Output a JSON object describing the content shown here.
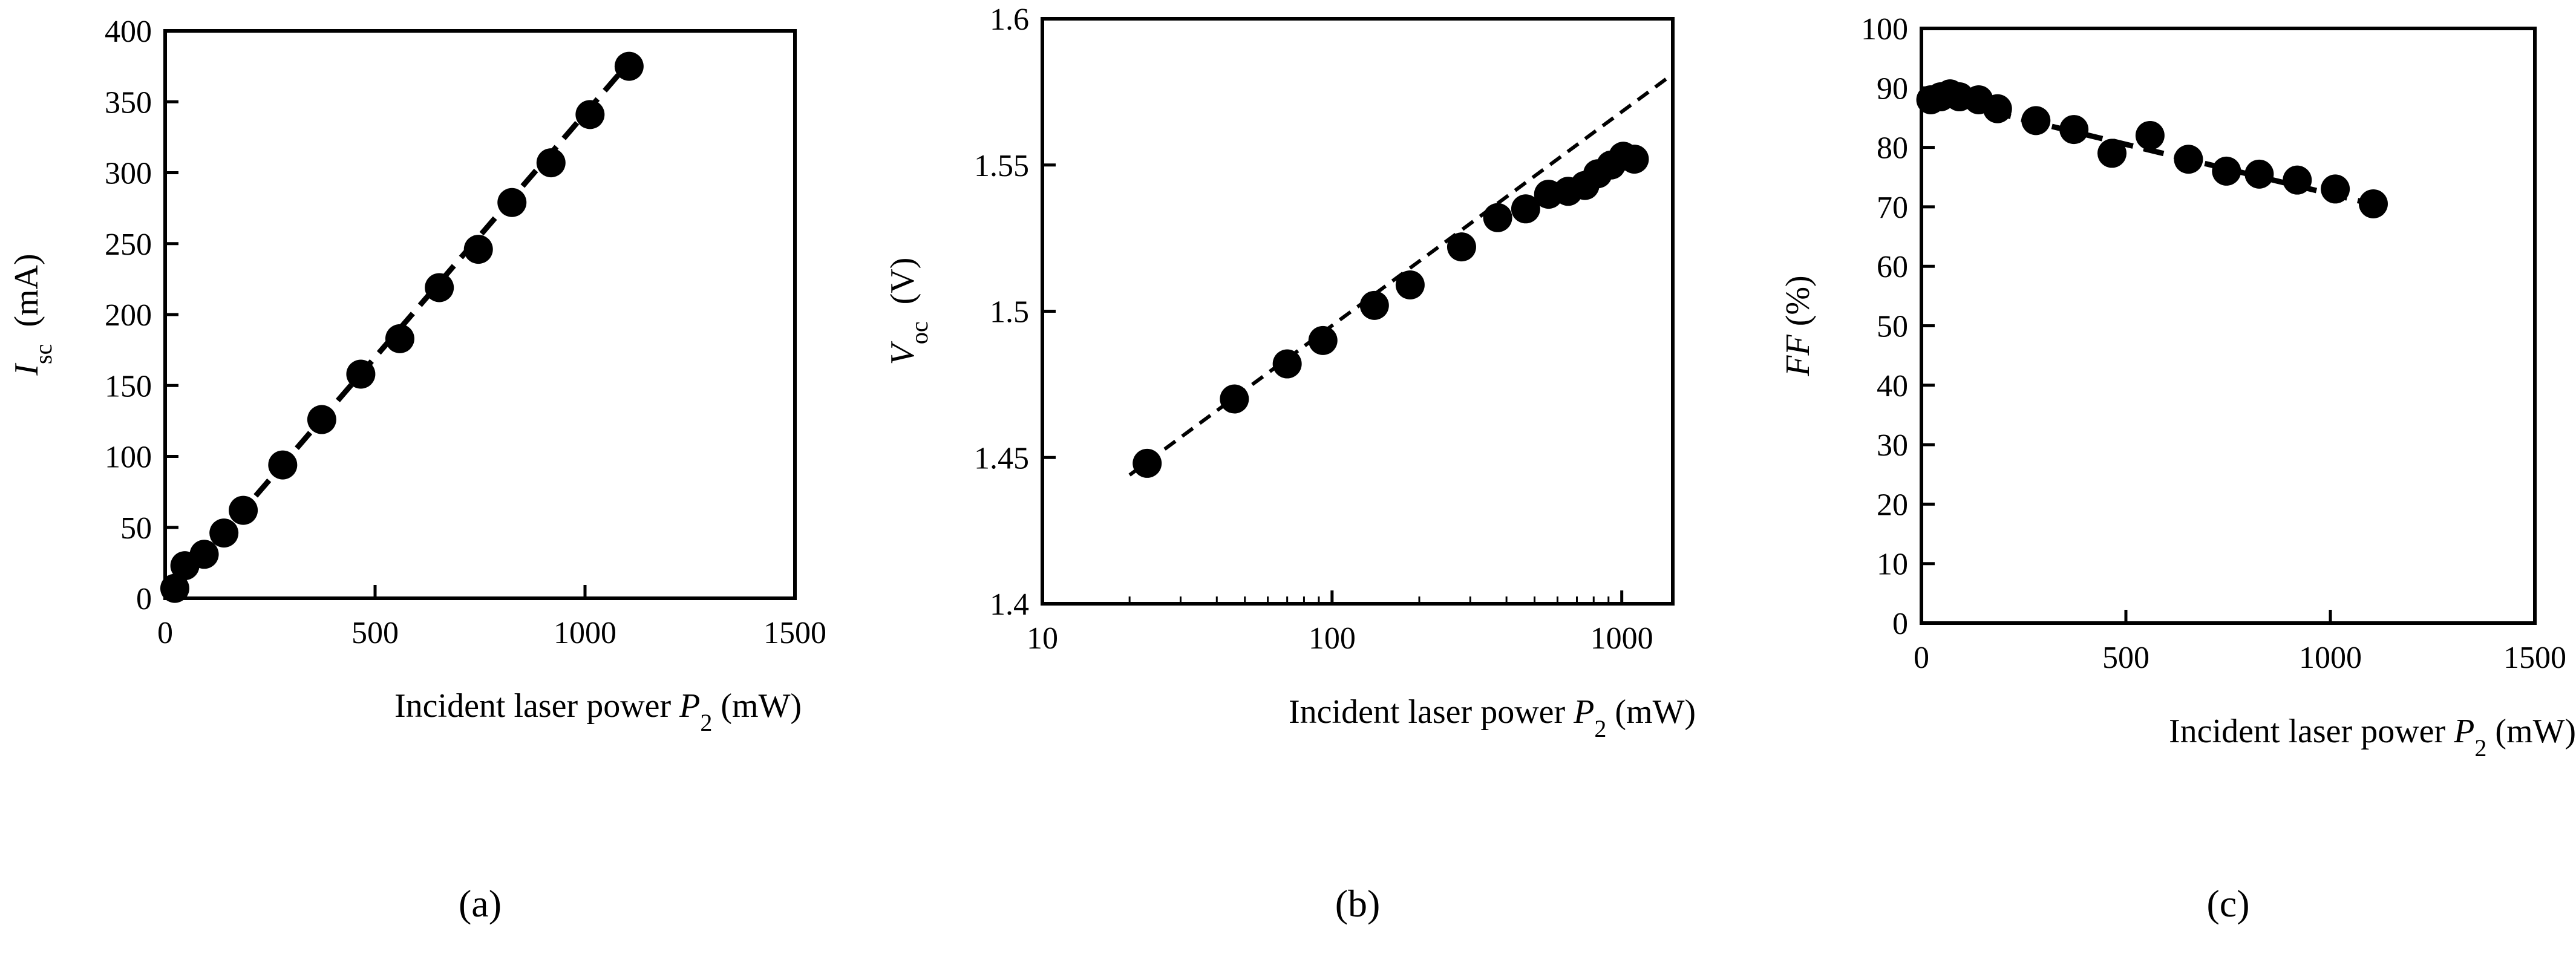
{
  "chart_data": [
    {
      "type": "scatter",
      "panel_label": "(a)",
      "xlabel": {
        "text": "Incident laser power ",
        "var": "P",
        "sub": "2",
        "unit": " (mW)"
      },
      "ylabel": {
        "var": "I",
        "sub": "sc",
        "unit": "(mA)"
      },
      "x_scale": "linear",
      "xlim": [
        0,
        1500
      ],
      "ylim": [
        0,
        400
      ],
      "xticks": [
        0,
        500,
        1000,
        1500
      ],
      "yticks": [
        0,
        50,
        100,
        150,
        200,
        250,
        300,
        350,
        400
      ],
      "grid": false,
      "marker_color": "#000000",
      "fit_line": {
        "style": "dashed",
        "points": [
          [
            20,
            5
          ],
          [
            1100,
            376
          ]
        ]
      },
      "series": [
        {
          "x": [
            23,
            47,
            93,
            140,
            186,
            280,
            373,
            466,
            559,
            653,
            746,
            826,
            919,
            1012,
            1105
          ],
          "y": [
            7,
            23,
            31,
            46,
            62,
            94,
            126,
            158,
            183,
            219,
            246,
            279,
            307,
            341,
            375
          ]
        }
      ]
    },
    {
      "type": "scatter",
      "panel_label": "(b)",
      "xlabel": {
        "text": "Incident laser power ",
        "var": "P",
        "sub": "2",
        "unit": " (mW)"
      },
      "ylabel": {
        "var": "V",
        "sub": "oc",
        "unit": "(V)"
      },
      "x_scale": "log",
      "xlim": [
        10,
        1500
      ],
      "ylim": [
        1.4,
        1.6
      ],
      "xticks": [
        10,
        100,
        1000
      ],
      "yticks": [
        1.4,
        1.45,
        1.5,
        1.55,
        1.6
      ],
      "ytick_labels": [
        "1.4",
        "1.45",
        "1.5",
        "1.55",
        "1.6"
      ],
      "grid": false,
      "marker_color": "#000000",
      "fit_line": {
        "style": "dashed",
        "points": [
          [
            20,
            1.444
          ],
          [
            1450,
            1.58
          ]
        ]
      },
      "series": [
        {
          "x": [
            23,
            46,
            70,
            93,
            140,
            186,
            280,
            373,
            466,
            559,
            653,
            746,
            826,
            919,
            1012,
            1105
          ],
          "y": [
            1.448,
            1.47,
            1.482,
            1.49,
            1.502,
            1.509,
            1.522,
            1.532,
            1.535,
            1.54,
            1.541,
            1.543,
            1.547,
            1.55,
            1.553,
            1.552
          ]
        }
      ]
    },
    {
      "type": "scatter",
      "panel_label": "(c)",
      "xlabel": {
        "text": "Incident laser power ",
        "var": "P",
        "sub": "2",
        "unit": " (mW)"
      },
      "ylabel": {
        "var": "FF",
        "sub": "",
        "unit": " (%)"
      },
      "x_scale": "linear",
      "xlim": [
        0,
        1500
      ],
      "ylim": [
        0,
        100
      ],
      "xticks": [
        0,
        500,
        1000,
        1500
      ],
      "yticks": [
        0,
        10,
        20,
        30,
        40,
        50,
        60,
        70,
        80,
        90,
        100
      ],
      "grid": false,
      "marker_color": "#000000",
      "fit_line": {
        "style": "dashed",
        "points": [
          [
            20,
            88.5
          ],
          [
            1100,
            70.5
          ]
        ]
      },
      "series": [
        {
          "x": [
            23,
            47,
            70,
            93,
            140,
            186,
            280,
            373,
            466,
            559,
            653,
            746,
            826,
            919,
            1012,
            1105
          ],
          "y": [
            88,
            88.5,
            89,
            88.5,
            88,
            86.5,
            84.5,
            83,
            79,
            82,
            78,
            76,
            75.5,
            74.5,
            73,
            70.5
          ]
        }
      ]
    }
  ]
}
